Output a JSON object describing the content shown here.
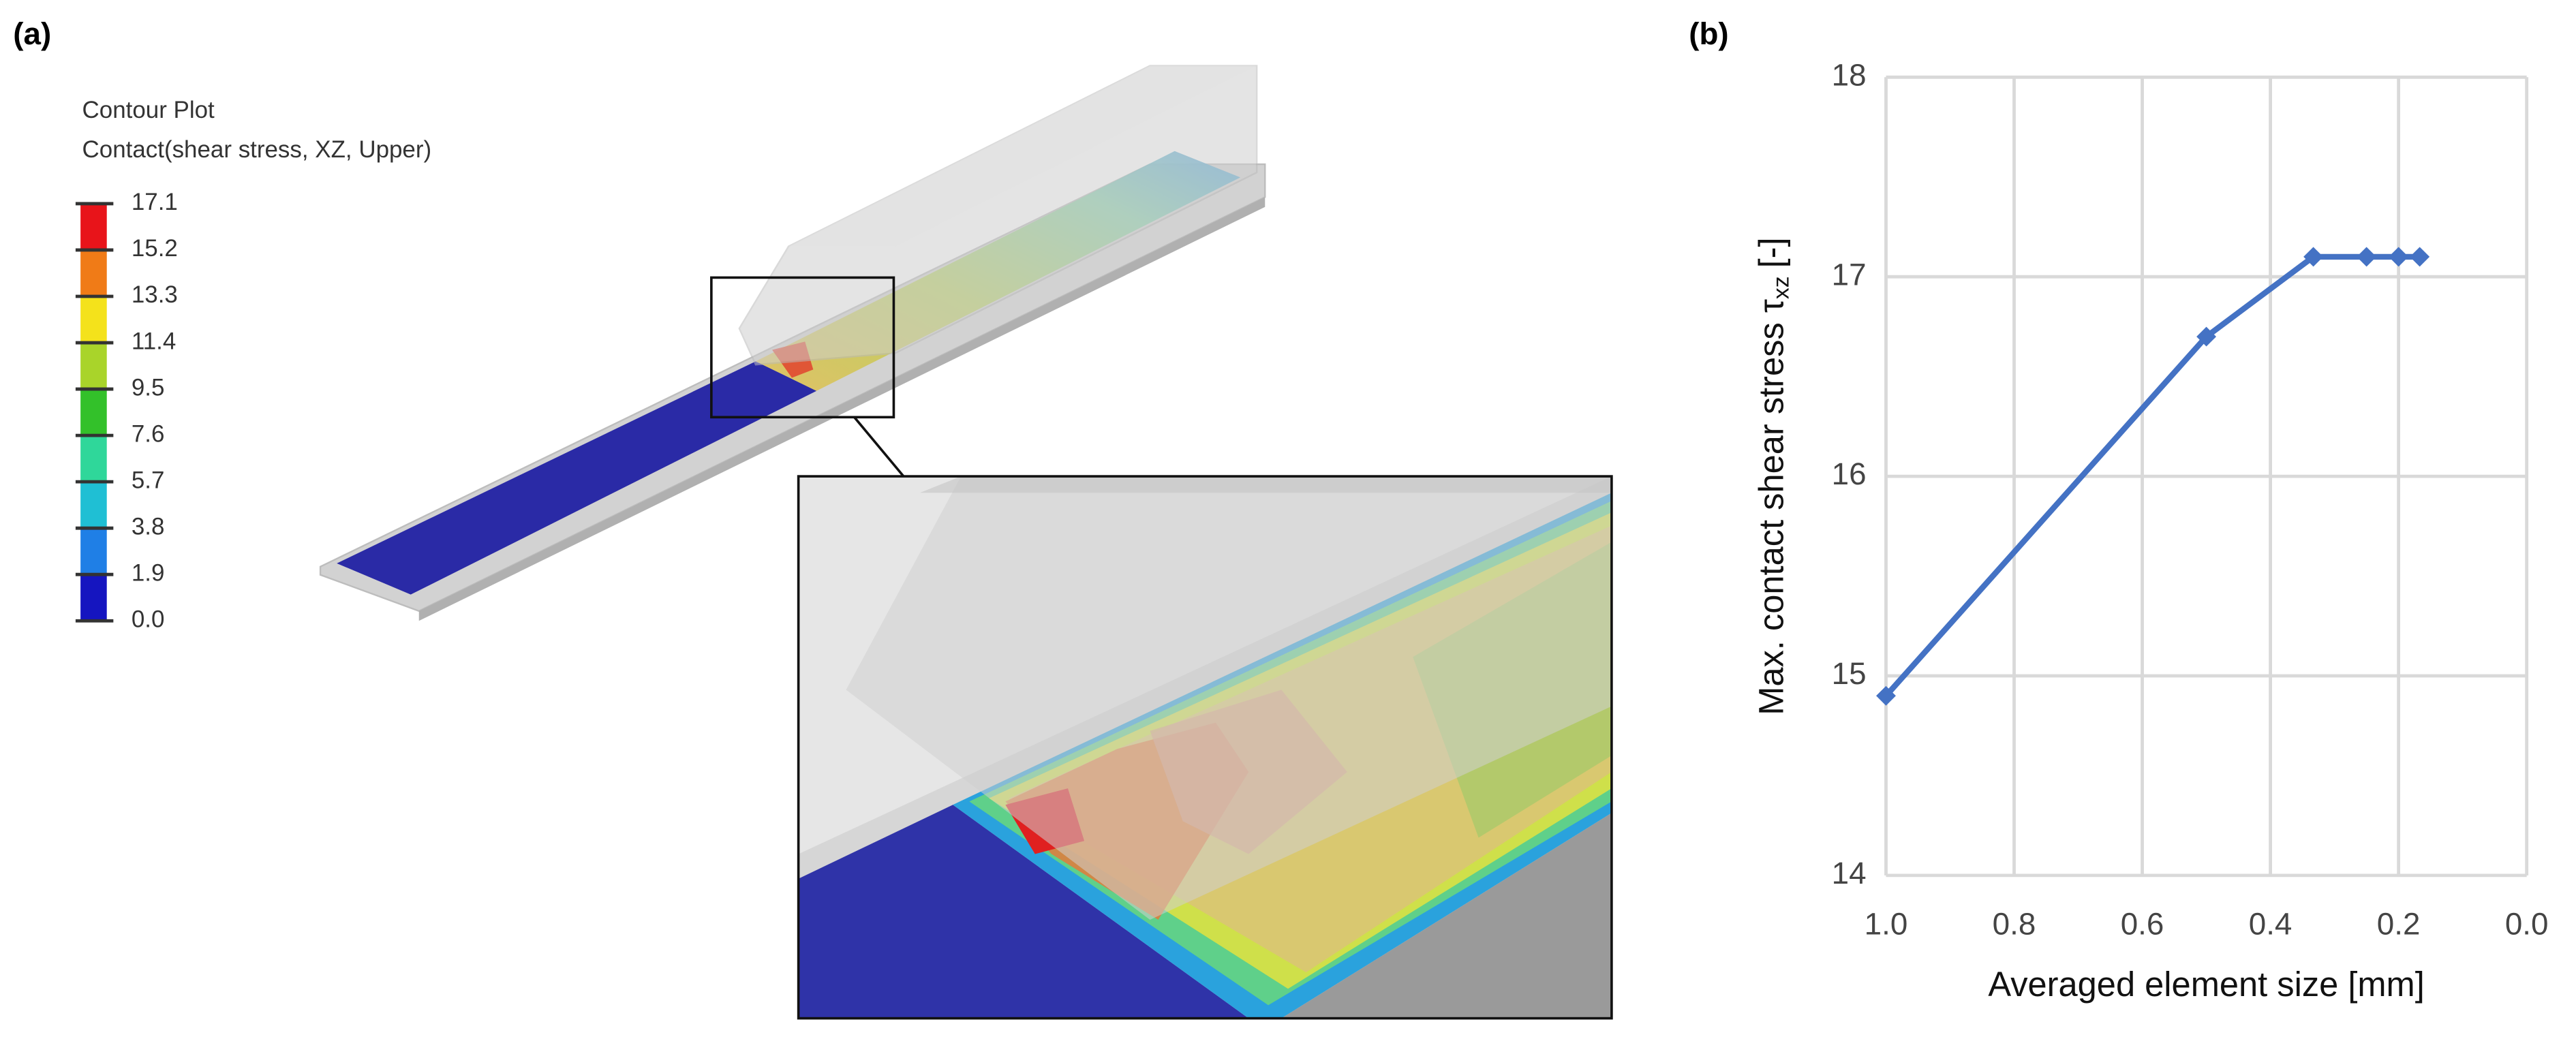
{
  "panel_labels": [
    "(a)",
    "(b)"
  ],
  "contour_plot": {
    "title": "Contour Plot",
    "subtitle": "Contact(shear stress, XZ, Upper)",
    "levels": [
      17.1,
      15.2,
      13.3,
      11.4,
      9.5,
      7.6,
      5.7,
      3.8,
      1.9,
      {
        "value": 0,
        "label": "0.0"
      }
    ],
    "colors": [
      "#e8141a",
      "#f07b17",
      "#f4e21b",
      "#a9d42a",
      "#33c12a",
      "#2fd79a",
      "#1fbfd4",
      "#1f7fe6",
      "#1515c0"
    ]
  },
  "chart_data": {
    "type": "line",
    "x_label": "Averaged element size [mm]",
    "y_label": {
      "text": "Max. contact shear stress τ",
      "subscript": "xz",
      "suffix": "[-]"
    },
    "x": [
      1.0,
      0.5,
      0.333,
      0.25,
      0.2,
      0.167
    ],
    "values": [
      14.9,
      16.7,
      17.1,
      17.1,
      17.1,
      17.1
    ],
    "color": "#4472c4",
    "marker": "diamond",
    "xlim": [
      1,
      0
    ],
    "xticks": [
      {
        "value": 1,
        "label": "1.0"
      },
      0.8,
      0.6,
      0.4,
      0.2,
      {
        "value": 0,
        "label": "0.0"
      }
    ],
    "ylim": [
      14,
      18
    ],
    "yticks": [
      14,
      15,
      16,
      17,
      18
    ],
    "grid": true
  }
}
